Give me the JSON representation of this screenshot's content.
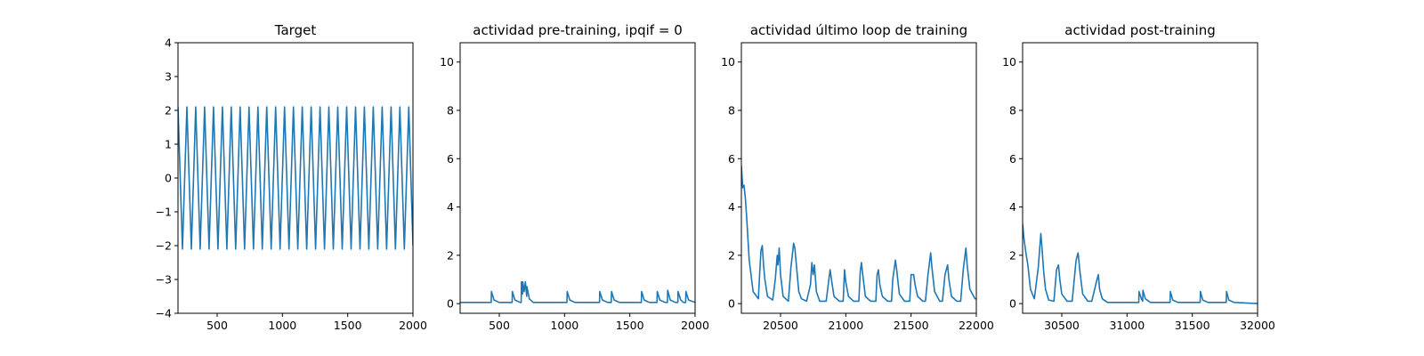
{
  "figure": {
    "background": "#ffffff"
  },
  "chart_data": [
    {
      "type": "line",
      "title": "Target",
      "xlabel": "",
      "ylabel": "",
      "xlim": [
        200,
        2000
      ],
      "ylim": [
        -4,
        4
      ],
      "xticks": [
        500,
        1000,
        1500,
        2000
      ],
      "yticks": [
        -4,
        -3,
        -2,
        -1,
        0,
        1,
        2,
        3,
        4
      ],
      "grid": false,
      "series": [
        {
          "color": "#1f77b4",
          "x": [
            200,
            234,
            268,
            302,
            336,
            370,
            404,
            438,
            472,
            506,
            540,
            574,
            608,
            642,
            676,
            710,
            744,
            778,
            812,
            846,
            880,
            914,
            948,
            982,
            1016,
            1050,
            1084,
            1118,
            1152,
            1186,
            1220,
            1254,
            1288,
            1322,
            1356,
            1390,
            1424,
            1458,
            1492,
            1526,
            1560,
            1594,
            1628,
            1662,
            1696,
            1730,
            1764,
            1798,
            1832,
            1866,
            1900,
            1934,
            1968,
            2000
          ],
          "y": [
            2.1,
            -2.1,
            2.1,
            -2.1,
            2.1,
            -2.1,
            2.1,
            -2.1,
            2.1,
            -2.1,
            2.1,
            -2.1,
            2.1,
            -2.1,
            2.1,
            -2.1,
            2.1,
            -2.1,
            2.1,
            -2.1,
            2.1,
            -2.1,
            2.1,
            -2.1,
            2.1,
            -2.1,
            2.1,
            -2.1,
            2.1,
            -2.1,
            2.1,
            -2.1,
            2.1,
            -2.1,
            2.1,
            -2.1,
            2.1,
            -2.1,
            2.1,
            -2.1,
            2.1,
            -2.1,
            2.1,
            -2.1,
            2.1,
            -2.1,
            2.1,
            -2.1,
            2.1,
            -2.1,
            2.1,
            -2.1,
            2.1,
            -2.0
          ]
        }
      ]
    },
    {
      "type": "line",
      "title": "actividad pre-training, ipqif = 0",
      "xlabel": "",
      "ylabel": "",
      "xlim": [
        200,
        2000
      ],
      "ylim": [
        -0.4,
        10.8
      ],
      "xticks": [
        500,
        1000,
        1500,
        2000
      ],
      "yticks": [
        0,
        2,
        4,
        6,
        8,
        10
      ],
      "grid": false,
      "series": [
        {
          "color": "#1f77b4",
          "x": [
            200,
            438,
            440,
            460,
            500,
            598,
            600,
            620,
            660,
            668,
            670,
            678,
            680,
            690,
            700,
            710,
            712,
            730,
            760,
            1018,
            1020,
            1040,
            1080,
            1268,
            1270,
            1290,
            1330,
            1358,
            1360,
            1380,
            1420,
            1588,
            1590,
            1610,
            1650,
            1708,
            1710,
            1730,
            1770,
            1788,
            1790,
            1810,
            1850,
            1868,
            1870,
            1890,
            1910,
            1928,
            1930,
            1950,
            2000
          ],
          "y": [
            0.05,
            0.05,
            0.5,
            0.15,
            0.05,
            0.05,
            0.5,
            0.15,
            0.05,
            0.05,
            0.9,
            0.4,
            0.9,
            0.5,
            0.9,
            0.3,
            0.7,
            0.2,
            0.05,
            0.05,
            0.5,
            0.15,
            0.05,
            0.05,
            0.5,
            0.15,
            0.05,
            0.05,
            0.5,
            0.15,
            0.05,
            0.05,
            0.5,
            0.15,
            0.05,
            0.05,
            0.5,
            0.15,
            0.05,
            0.05,
            0.55,
            0.15,
            0.05,
            0.05,
            0.5,
            0.15,
            0.05,
            0.05,
            0.5,
            0.15,
            0.05
          ]
        }
      ]
    },
    {
      "type": "line",
      "title": "actividad último loop de training",
      "xlabel": "",
      "ylabel": "",
      "xlim": [
        20200,
        22000
      ],
      "ylim": [
        -0.4,
        10.8
      ],
      "xticks": [
        20500,
        21000,
        21500,
        22000
      ],
      "yticks": [
        0,
        2,
        4,
        6,
        8,
        10
      ],
      "grid": false,
      "series": [
        {
          "color": "#1f77b4",
          "x": [
            20200,
            20210,
            20220,
            20230,
            20240,
            20260,
            20290,
            20330,
            20340,
            20350,
            20360,
            20370,
            20380,
            20400,
            20440,
            20460,
            20475,
            20480,
            20490,
            20500,
            20520,
            20560,
            20580,
            20600,
            20610,
            20625,
            20640,
            20660,
            20700,
            20730,
            20740,
            20750,
            20760,
            20775,
            20800,
            20850,
            20870,
            20880,
            20890,
            20910,
            20950,
            20980,
            20990,
            21000,
            21020,
            21060,
            21100,
            21110,
            21120,
            21130,
            21150,
            21190,
            21230,
            21240,
            21250,
            21260,
            21280,
            21320,
            21350,
            21360,
            21380,
            21390,
            21410,
            21450,
            21490,
            21500,
            21520,
            21530,
            21550,
            21590,
            21610,
            21630,
            21650,
            21660,
            21680,
            21720,
            21740,
            21760,
            21780,
            21790,
            21810,
            21850,
            21880,
            21900,
            21920,
            21930,
            21950,
            21990,
            22000
          ],
          "y": [
            5.7,
            4.8,
            4.9,
            4.4,
            3.6,
            1.8,
            0.5,
            0.2,
            1.2,
            2.2,
            2.4,
            1.6,
            1.0,
            0.3,
            0.15,
            1.0,
            2.0,
            1.6,
            2.3,
            1.2,
            0.3,
            0.1,
            1.5,
            2.5,
            2.3,
            1.4,
            0.5,
            0.2,
            0.1,
            0.8,
            1.7,
            1.2,
            1.6,
            0.5,
            0.1,
            0.1,
            1.0,
            1.4,
            1.0,
            0.3,
            0.1,
            0.1,
            1.4,
            0.9,
            0.3,
            0.1,
            0.1,
            1.3,
            1.7,
            1.2,
            0.3,
            0.1,
            0.1,
            1.2,
            1.4,
            0.8,
            0.3,
            0.1,
            0.1,
            1.0,
            1.8,
            1.4,
            0.4,
            0.1,
            0.1,
            1.2,
            1.2,
            0.8,
            0.3,
            0.1,
            0.1,
            1.2,
            2.1,
            1.5,
            0.5,
            0.1,
            0.1,
            1.2,
            1.6,
            1.0,
            0.3,
            0.1,
            0.1,
            1.4,
            2.3,
            1.6,
            0.6,
            0.2,
            0.2
          ]
        }
      ]
    },
    {
      "type": "line",
      "title": "actividad post-training",
      "xlabel": "",
      "ylabel": "",
      "xlim": [
        30200,
        32000
      ],
      "ylim": [
        -0.4,
        10.8
      ],
      "xticks": [
        30500,
        31000,
        31500,
        32000
      ],
      "yticks": [
        0,
        2,
        4,
        6,
        8,
        10
      ],
      "grid": false,
      "series": [
        {
          "color": "#1f77b4",
          "x": [
            30200,
            30210,
            30225,
            30240,
            30260,
            30290,
            30320,
            30340,
            30350,
            30360,
            30375,
            30400,
            30440,
            30460,
            30475,
            30485,
            30500,
            30540,
            30580,
            30610,
            30625,
            30640,
            30660,
            30700,
            30730,
            30770,
            30780,
            30790,
            30810,
            30850,
            31090,
            31092,
            31110,
            31120,
            31122,
            31140,
            31180,
            31330,
            31332,
            31350,
            31390,
            31560,
            31562,
            31580,
            31620,
            31760,
            31762,
            31780,
            31820,
            32000
          ],
          "y": [
            3.3,
            2.7,
            2.1,
            1.6,
            0.6,
            0.2,
            1.5,
            2.9,
            2.2,
            1.4,
            0.6,
            0.15,
            0.1,
            1.4,
            1.6,
            1.0,
            0.4,
            0.1,
            0.1,
            1.8,
            2.1,
            1.3,
            0.4,
            0.1,
            0.1,
            1.0,
            1.2,
            0.6,
            0.2,
            0.05,
            0.05,
            0.5,
            0.2,
            0.1,
            0.55,
            0.2,
            0.05,
            0.05,
            0.5,
            0.15,
            0.05,
            0.05,
            0.5,
            0.15,
            0.05,
            0.05,
            0.5,
            0.15,
            0.05,
            0.0
          ]
        }
      ]
    }
  ]
}
